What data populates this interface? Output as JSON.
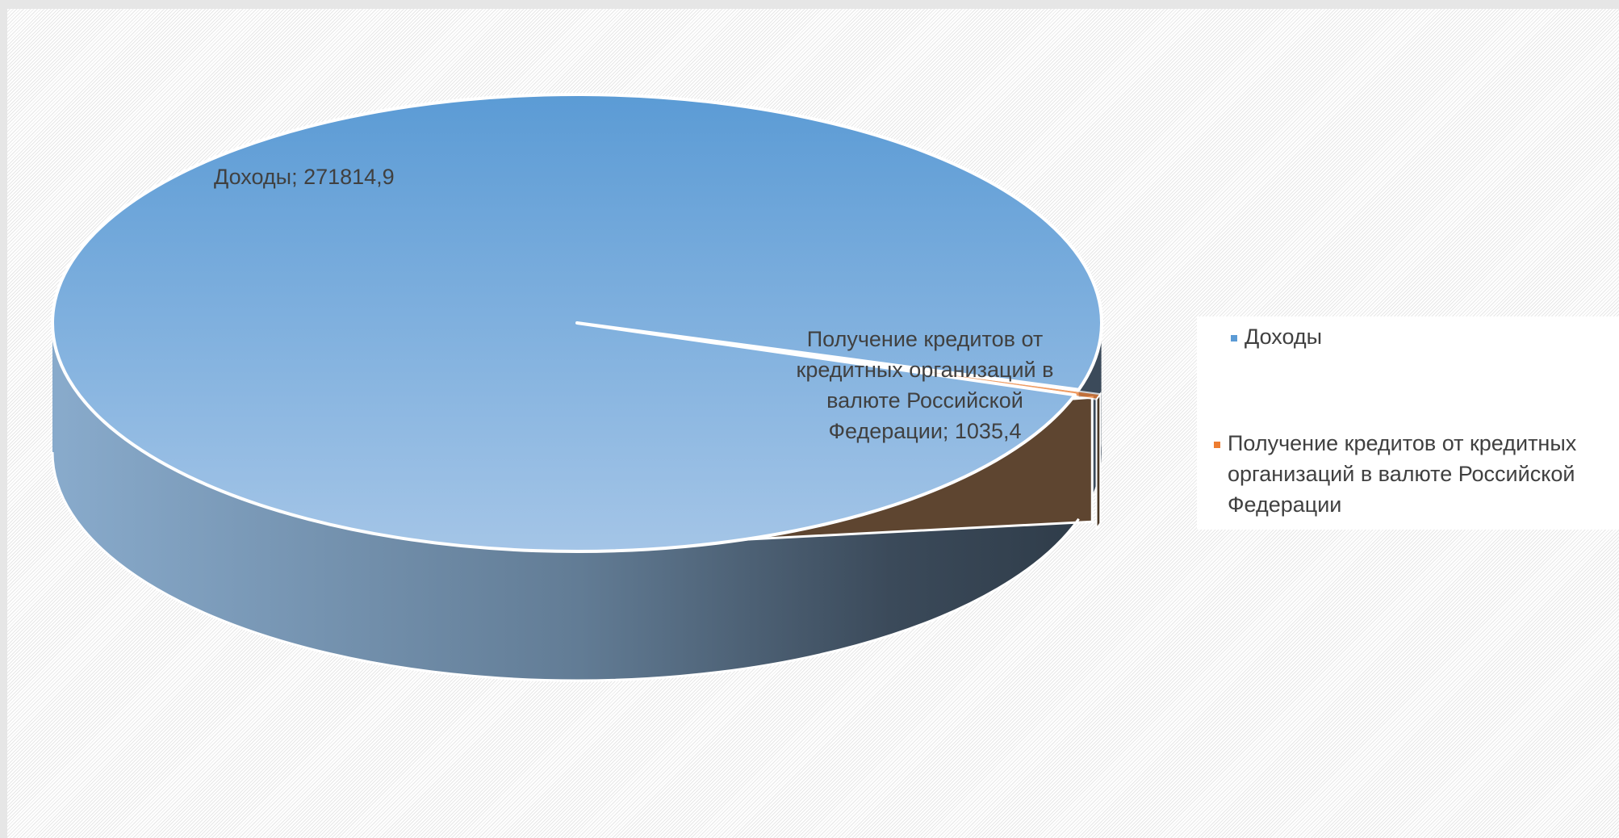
{
  "chart_data": {
    "type": "pie",
    "style": "3d",
    "title": "",
    "categories": [
      "Доходы",
      "Получение кредитов от кредитных организаций  в валюте Российской Федерации"
    ],
    "values": [
      271814.9,
      1035.4
    ],
    "colors": [
      "#5b9bd5",
      "#ed7d31"
    ],
    "data_labels": [
      [
        "Доходы; 271814,9"
      ],
      [
        "Получение кредитов от",
        "кредитных организаций  в",
        "валюте Российской",
        "Федерации; 1035,4"
      ]
    ],
    "legend": {
      "position": "right",
      "entries": [
        [
          "Доходы"
        ],
        [
          "Получение кредитов от кредитных",
          "организаций  в валюте Российской",
          "Федерации"
        ]
      ]
    }
  }
}
